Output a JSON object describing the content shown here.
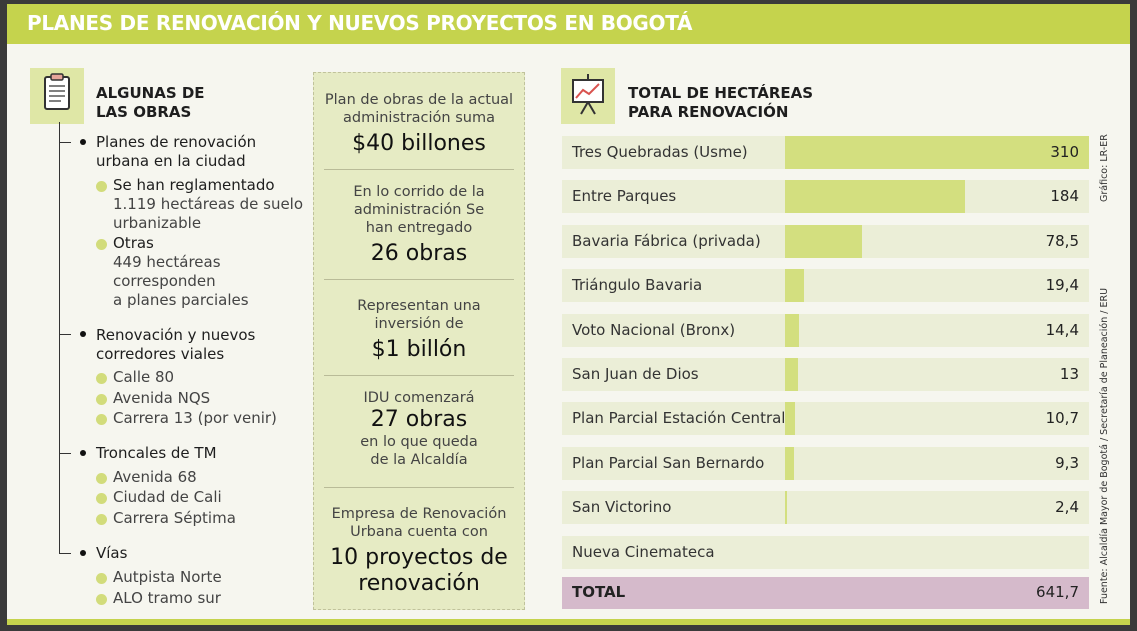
{
  "header": {
    "title": "PLANES DE RENOVACIÓN Y NUEVOS PROYECTOS EN BOGOTÁ"
  },
  "left": {
    "title_line1": "ALGUNAS DE",
    "title_line2": "LAS OBRAS",
    "icon": "clipboard-icon",
    "groups": [
      {
        "title": [
          "Planes de renovación",
          "urbana en la ciudad"
        ],
        "items": [
          [
            "Se han reglamentado",
            "1.119 hectáreas de suelo",
            "urbanizable"
          ],
          [
            "Otras",
            "449 hectáreas",
            "corresponden",
            "a planes parciales"
          ]
        ]
      },
      {
        "title": [
          "Renovación y nuevos",
          "corredores viales"
        ],
        "items": [
          [
            "Calle 80"
          ],
          [
            "Avenida NQS"
          ],
          [
            "Carrera 13 (por venir)"
          ]
        ]
      },
      {
        "title": [
          "Troncales de TM"
        ],
        "items": [
          [
            "Avenida 68"
          ],
          [
            "Ciudad de Cali"
          ],
          [
            "Carrera Séptima"
          ]
        ]
      },
      {
        "title": [
          "Vías"
        ],
        "items": [
          [
            "Autpista Norte"
          ],
          [
            "ALO tramo sur"
          ]
        ]
      }
    ]
  },
  "center": {
    "stats": [
      {
        "pre": [
          "Plan de obras de la actual",
          "administración suma"
        ],
        "big": "$40 billones",
        "post": []
      },
      {
        "pre": [
          "En lo corrido de la",
          "administración Se",
          "han entregado"
        ],
        "big": "26 obras",
        "post": []
      },
      {
        "pre": [
          "Representan una",
          "inversión de"
        ],
        "big": "$1 billón",
        "post": []
      },
      {
        "pre": [
          "IDU comenzará"
        ],
        "big": "27 obras",
        "post": [
          "en lo que queda",
          "de la Alcaldía"
        ]
      },
      {
        "pre": [
          "Empresa de Renovación",
          "Urbana cuenta con"
        ],
        "big": "10 proyectos de renovación",
        "post": []
      }
    ]
  },
  "right": {
    "title_line1": "TOTAL DE HECTÁREAS",
    "title_line2": "PARA RENOVACIÓN",
    "icon": "presentation-chart-icon",
    "total_label": "TOTAL",
    "total_value": "641,7",
    "credit": "Gráfico: LR-ER",
    "source": "Fuente: Alcaldía Mayor de Bogotá / Secretaría de Planeación / ERU"
  },
  "colors": {
    "accent": "#c5d34d",
    "bar": "#d3df7f",
    "row_bg": "#ebeed7",
    "total_bg": "#d5bacb"
  },
  "chart_data": {
    "type": "bar",
    "title": "TOTAL DE HECTÁREAS PARA RENOVACIÓN",
    "categories": [
      "Tres Quebradas (Usme)",
      "Entre Parques",
      "Bavaria Fábrica (privada)",
      "Triángulo Bavaria",
      "Voto Nacional (Bronx)",
      "San Juan de Dios",
      "Plan Parcial Estación Central",
      "Plan Parcial San Bernardo",
      "San Victorino",
      "Nueva Cinemateca"
    ],
    "values": [
      310,
      184,
      78.5,
      19.4,
      14.4,
      13,
      10.7,
      9.3,
      2.4,
      null
    ],
    "value_labels": [
      "310",
      "184",
      "78,5",
      "19,4",
      "14,4",
      "13",
      "10,7",
      "9,3",
      "2,4",
      ""
    ],
    "xlim": [
      0,
      310
    ]
  }
}
